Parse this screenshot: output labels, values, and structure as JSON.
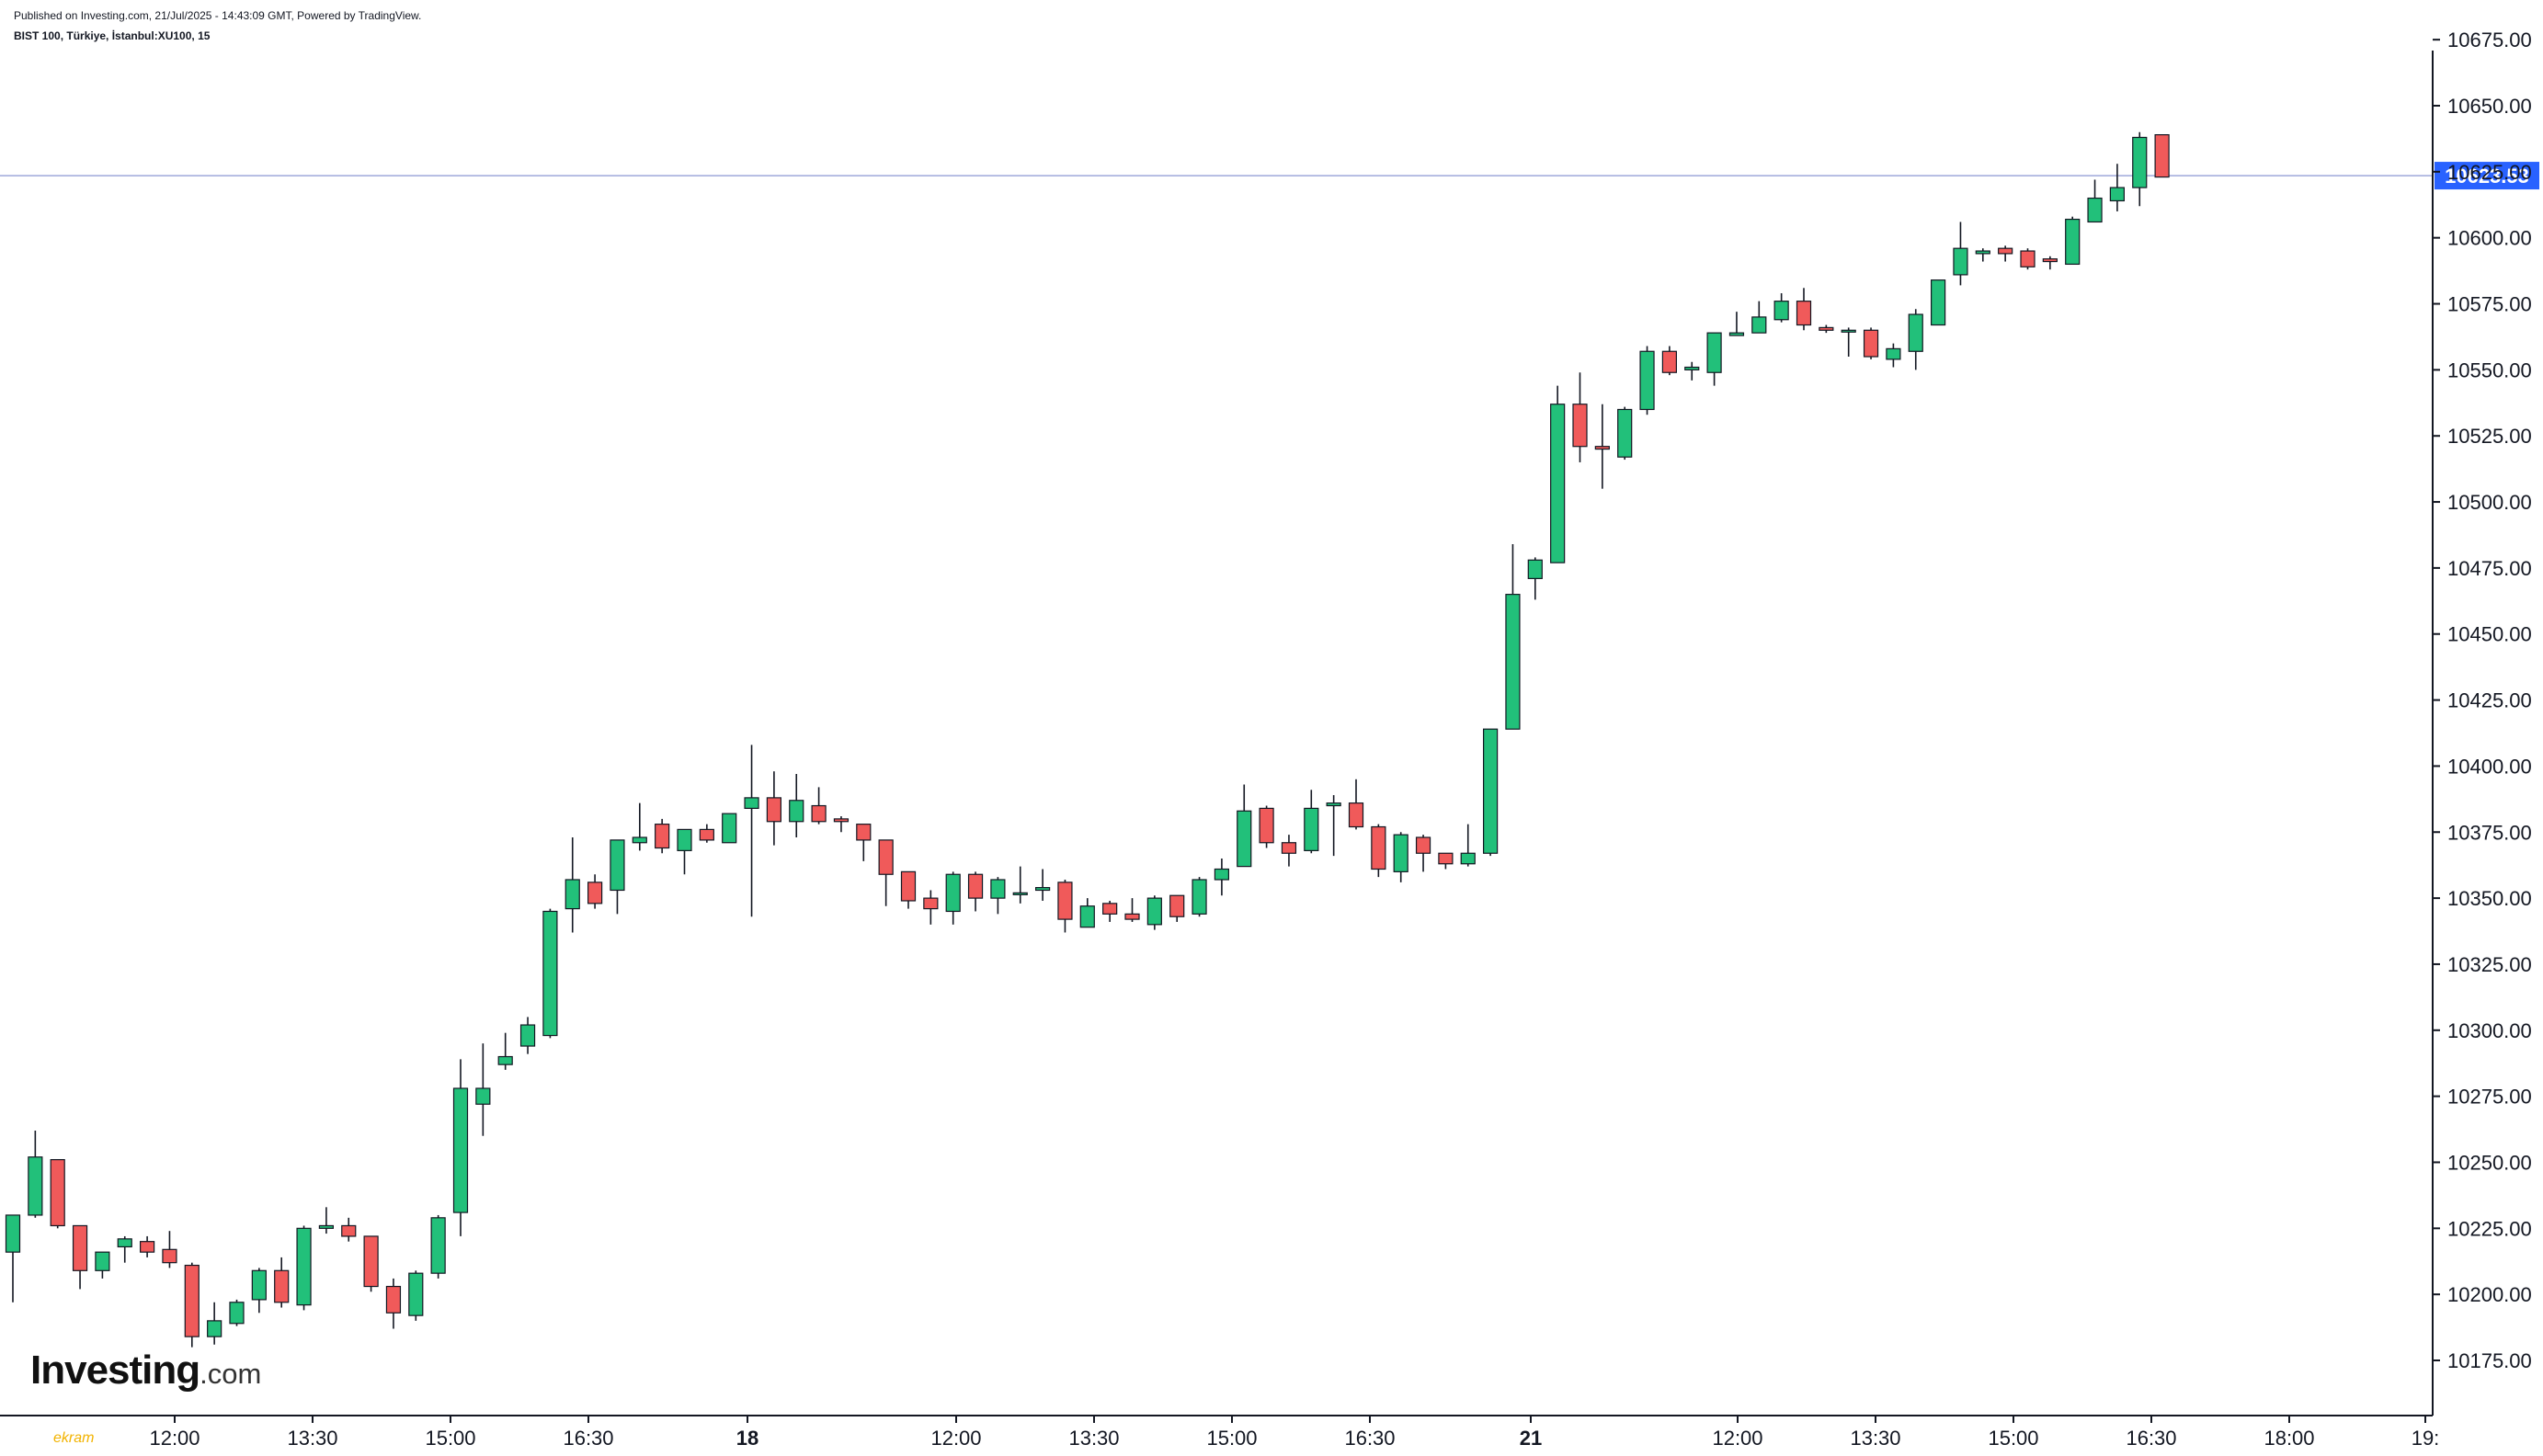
{
  "header": {
    "published": "Published on Investing.com, 21/Jul/2025 - 14:43:09 GMT, Powered by TradingView.",
    "symbol": "BIST 100, Türkiye, İstanbul:XU100, 15"
  },
  "logo": {
    "main": "Investing",
    "suffix": ".com"
  },
  "corner_mark": "ekram",
  "colors": {
    "up": "#089981",
    "up_fill": "#22c07a",
    "down": "#f23645",
    "down_fill": "#f05a5a",
    "current_line": "#9fa8da",
    "price_label_bg": "#2962ff",
    "axis": "#131722"
  },
  "chart_data": {
    "type": "candlestick",
    "title": "BIST 100, Türkiye, İstanbul:XU100, 15",
    "interval": "15",
    "y_axis": {
      "ticks": [
        "10175.00",
        "10200.00",
        "10225.00",
        "10250.00",
        "10275.00",
        "10300.00",
        "10325.00",
        "10350.00",
        "10375.00",
        "10400.00",
        "10425.00",
        "10450.00",
        "10475.00",
        "10500.00",
        "10525.00",
        "10550.00",
        "10575.00",
        "10600.00",
        "10625.00",
        "10650.00",
        "10675.00"
      ],
      "ylim": [
        10152,
        10695
      ],
      "side": "right"
    },
    "x_axis": {
      "ticks": [
        "12:00",
        "13:30",
        "15:00",
        "16:30",
        "18",
        "12:00",
        "13:30",
        "15:00",
        "16:30",
        "21",
        "12:00",
        "13:30",
        "15:00",
        "16:30",
        "18:00",
        "19:"
      ],
      "major_ticks": [
        "18",
        "21"
      ]
    },
    "current_price": "10623.53",
    "candles": [
      [
        10216,
        10230,
        10197,
        10230
      ],
      [
        10230,
        10252,
        10229,
        10262
      ],
      [
        10251,
        10226,
        10225,
        10251
      ],
      [
        10226,
        10209,
        10202,
        10226
      ],
      [
        10209,
        10216,
        10206,
        10216
      ],
      [
        10218,
        10221,
        10212,
        10222
      ],
      [
        10220,
        10216,
        10214,
        10222
      ],
      [
        10217,
        10212,
        10210,
        10224
      ],
      [
        10211,
        10184,
        10180,
        10212
      ],
      [
        10184,
        10190,
        10181,
        10197
      ],
      [
        10189,
        10197,
        10188,
        10198
      ],
      [
        10198,
        10209,
        10193,
        10210
      ],
      [
        10209,
        10197,
        10195,
        10214
      ],
      [
        10196,
        10225,
        10194,
        10226
      ],
      [
        10225,
        10226,
        10223,
        10233
      ],
      [
        10226,
        10222,
        10220,
        10229
      ],
      [
        10222,
        10203,
        10201,
        10222
      ],
      [
        10203,
        10193,
        10187,
        10206
      ],
      [
        10192,
        10208,
        10190,
        10209
      ],
      [
        10208,
        10229,
        10206,
        10230
      ],
      [
        10231,
        10278,
        10222,
        10289
      ],
      [
        10272,
        10278,
        10260,
        10295
      ],
      [
        10287,
        10290,
        10285,
        10299
      ],
      [
        10294,
        10302,
        10291,
        10305
      ],
      [
        10298,
        10345,
        10297,
        10346
      ],
      [
        10346,
        10357,
        10337,
        10373
      ],
      [
        10356,
        10348,
        10346,
        10359
      ],
      [
        10353,
        10372,
        10344,
        10372
      ],
      [
        10371,
        10373,
        10368,
        10386
      ],
      [
        10378,
        10369,
        10367,
        10380
      ],
      [
        10368,
        10376,
        10359,
        10376
      ],
      [
        10376,
        10372,
        10371,
        10378
      ],
      [
        10371,
        10382,
        10371,
        10382
      ],
      [
        10384,
        10388,
        10343,
        10408
      ],
      [
        10388,
        10379,
        10370,
        10398
      ],
      [
        10379,
        10387,
        10373,
        10397
      ],
      [
        10385,
        10379,
        10378,
        10392
      ],
      [
        10380,
        10379,
        10375,
        10381
      ],
      [
        10378,
        10372,
        10364,
        10378
      ],
      [
        10372,
        10359,
        10347,
        10372
      ],
      [
        10360,
        10349,
        10346,
        10360
      ],
      [
        10350,
        10346,
        10340,
        10353
      ],
      [
        10345,
        10359,
        10340,
        10360
      ],
      [
        10359,
        10350,
        10345,
        10360
      ],
      [
        10350,
        10357,
        10344,
        10358
      ],
      [
        10352,
        10352,
        10348,
        10362
      ],
      [
        10353,
        10354,
        10349,
        10361
      ],
      [
        10356,
        10342,
        10337,
        10357
      ],
      [
        10339,
        10347,
        10339,
        10350
      ],
      [
        10348,
        10344,
        10341,
        10349
      ],
      [
        10344,
        10342,
        10341,
        10350
      ],
      [
        10340,
        10350,
        10338,
        10351
      ],
      [
        10351,
        10343,
        10341,
        10351
      ],
      [
        10344,
        10357,
        10343,
        10358
      ],
      [
        10357,
        10361,
        10351,
        10365
      ],
      [
        10362,
        10383,
        10362,
        10393
      ],
      [
        10384,
        10371,
        10369,
        10385
      ],
      [
        10371,
        10367,
        10362,
        10374
      ],
      [
        10368,
        10384,
        10367,
        10391
      ],
      [
        10385,
        10386,
        10366,
        10389
      ],
      [
        10386,
        10377,
        10376,
        10395
      ],
      [
        10377,
        10361,
        10358,
        10378
      ],
      [
        10360,
        10374,
        10356,
        10375
      ],
      [
        10373,
        10367,
        10360,
        10374
      ],
      [
        10367,
        10363,
        10361,
        10367
      ],
      [
        10363,
        10367,
        10362,
        10378
      ],
      [
        10367,
        10414,
        10366,
        10414
      ],
      [
        10414,
        10465,
        10414,
        10484
      ],
      [
        10471,
        10478,
        10463,
        10479
      ],
      [
        10477,
        10537,
        10477,
        10544
      ],
      [
        10537,
        10521,
        10515,
        10549
      ],
      [
        10521,
        10520,
        10505,
        10537
      ],
      [
        10517,
        10535,
        10516,
        10536
      ],
      [
        10535,
        10557,
        10533,
        10559
      ],
      [
        10557,
        10549,
        10548,
        10559
      ],
      [
        10550,
        10551,
        10546,
        10553
      ],
      [
        10549,
        10564,
        10544,
        10564
      ],
      [
        10563,
        10564,
        10563,
        10572
      ],
      [
        10564,
        10570,
        10564,
        10576
      ],
      [
        10569,
        10576,
        10568,
        10579
      ],
      [
        10576,
        10567,
        10565,
        10581
      ],
      [
        10566,
        10565,
        10564,
        10567
      ],
      [
        10565,
        10565,
        10555,
        10566
      ],
      [
        10565,
        10555,
        10554,
        10566
      ],
      [
        10554,
        10558,
        10551,
        10560
      ],
      [
        10557,
        10571,
        10550,
        10573
      ],
      [
        10567,
        10584,
        10567,
        10584
      ],
      [
        10586,
        10596,
        10582,
        10606
      ],
      [
        10594,
        10595,
        10591,
        10596
      ],
      [
        10596,
        10594,
        10591,
        10597
      ],
      [
        10595,
        10589,
        10588,
        10596
      ],
      [
        10592,
        10591,
        10588,
        10593
      ],
      [
        10590,
        10607,
        10590,
        10608
      ],
      [
        10606,
        10615,
        10606,
        10622
      ],
      [
        10614,
        10619,
        10610,
        10628
      ],
      [
        10619,
        10638,
        10612,
        10640
      ],
      [
        10639,
        10623,
        10623,
        10639
      ]
    ]
  }
}
